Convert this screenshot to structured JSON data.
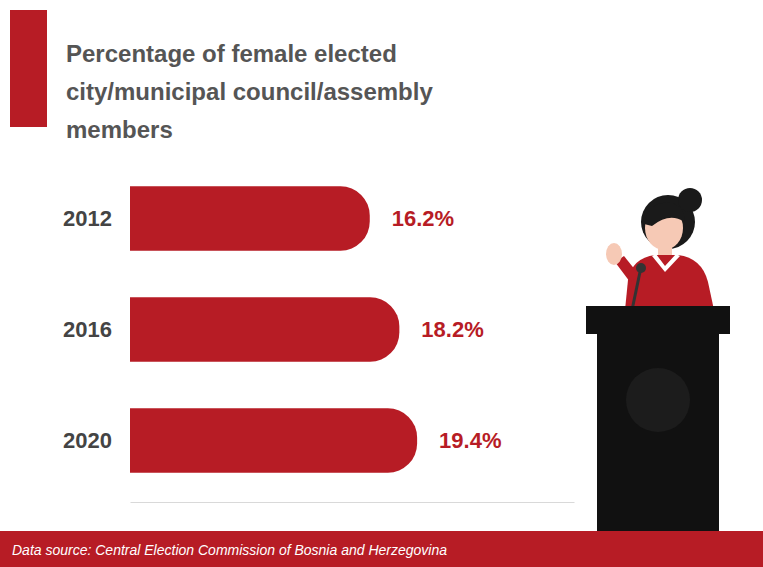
{
  "chart_data": {
    "type": "bar",
    "title": "Percentage of female elected city/municipal council/assembly members",
    "source": "Data source: Central Election Commission of Bosnia and Herzegovina",
    "categories": [
      "2012",
      "2016",
      "2020"
    ],
    "values": [
      16.2,
      18.2,
      19.4
    ],
    "value_labels": [
      "16.2%",
      "18.2%",
      "19.4%"
    ],
    "color": "#b71c25",
    "orientation": "horizontal",
    "data_labels": true,
    "tick_labels": false,
    "grid": false,
    "xlim": [
      0,
      30
    ]
  }
}
